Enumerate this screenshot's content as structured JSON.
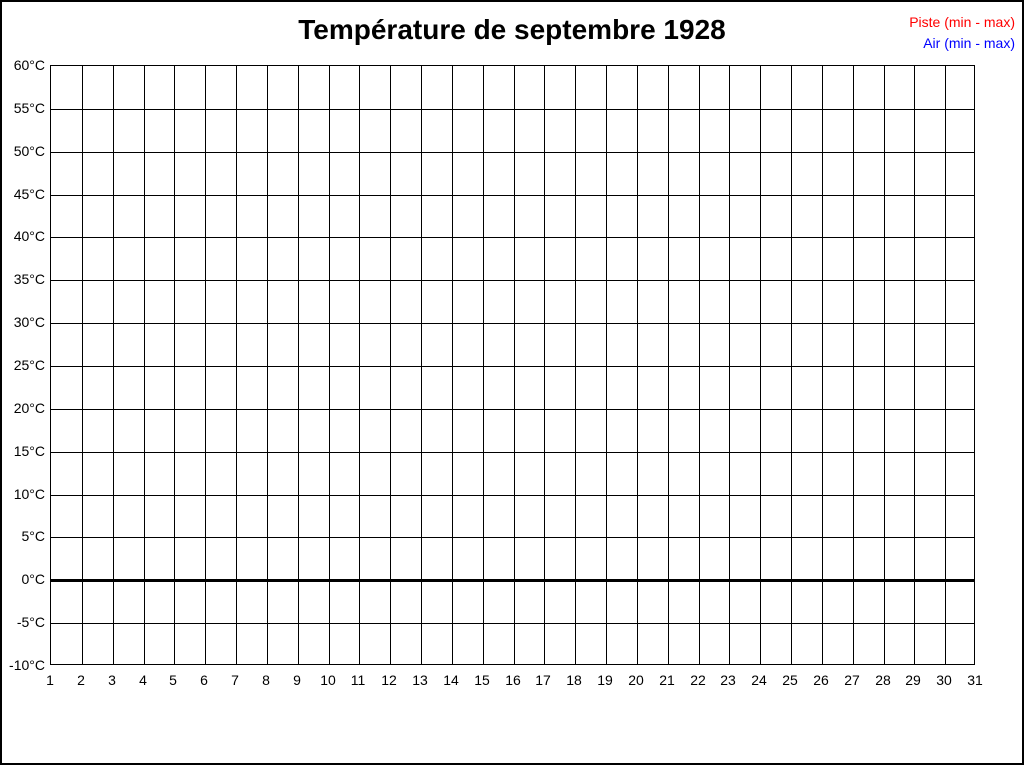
{
  "window": {
    "background": "#ffffff",
    "frame_color": "#000000"
  },
  "header": {
    "title": "Température de septembre 1928"
  },
  "legend": {
    "items": [
      {
        "label": "Piste (min - max)",
        "color": "#ff0000"
      },
      {
        "label": "Air (min - max)",
        "color": "#0000ff"
      }
    ]
  },
  "chart_data": {
    "type": "line",
    "title": "Température de septembre 1928",
    "xlabel": "",
    "ylabel": "",
    "xlim": [
      1,
      31
    ],
    "ylim": [
      -10,
      60
    ],
    "grid": true,
    "grid_color": "#000000",
    "x_ticks": [
      1,
      2,
      3,
      4,
      5,
      6,
      7,
      8,
      9,
      10,
      11,
      12,
      13,
      14,
      15,
      16,
      17,
      18,
      19,
      20,
      21,
      22,
      23,
      24,
      25,
      26,
      27,
      28,
      29,
      30,
      31
    ],
    "y_ticks": [
      60,
      55,
      50,
      45,
      40,
      35,
      30,
      25,
      20,
      15,
      10,
      5,
      0,
      -5,
      -10
    ],
    "y_tick_labels": [
      "60°C",
      "55°C",
      "50°C",
      "45°C",
      "40°C",
      "35°C",
      "30°C",
      "25°C",
      "20°C",
      "15°C",
      "10°C",
      "5°C",
      "0°C",
      "-5°C",
      "-10°C"
    ],
    "zero_line": {
      "value": 0,
      "thickness_px": 3,
      "color": "#000000"
    },
    "legend_position": "top-right",
    "series": [
      {
        "name": "Piste (min - max)",
        "color": "#ff0000",
        "values": []
      },
      {
        "name": "Air (min - max)",
        "color": "#0000ff",
        "values": []
      }
    ]
  }
}
